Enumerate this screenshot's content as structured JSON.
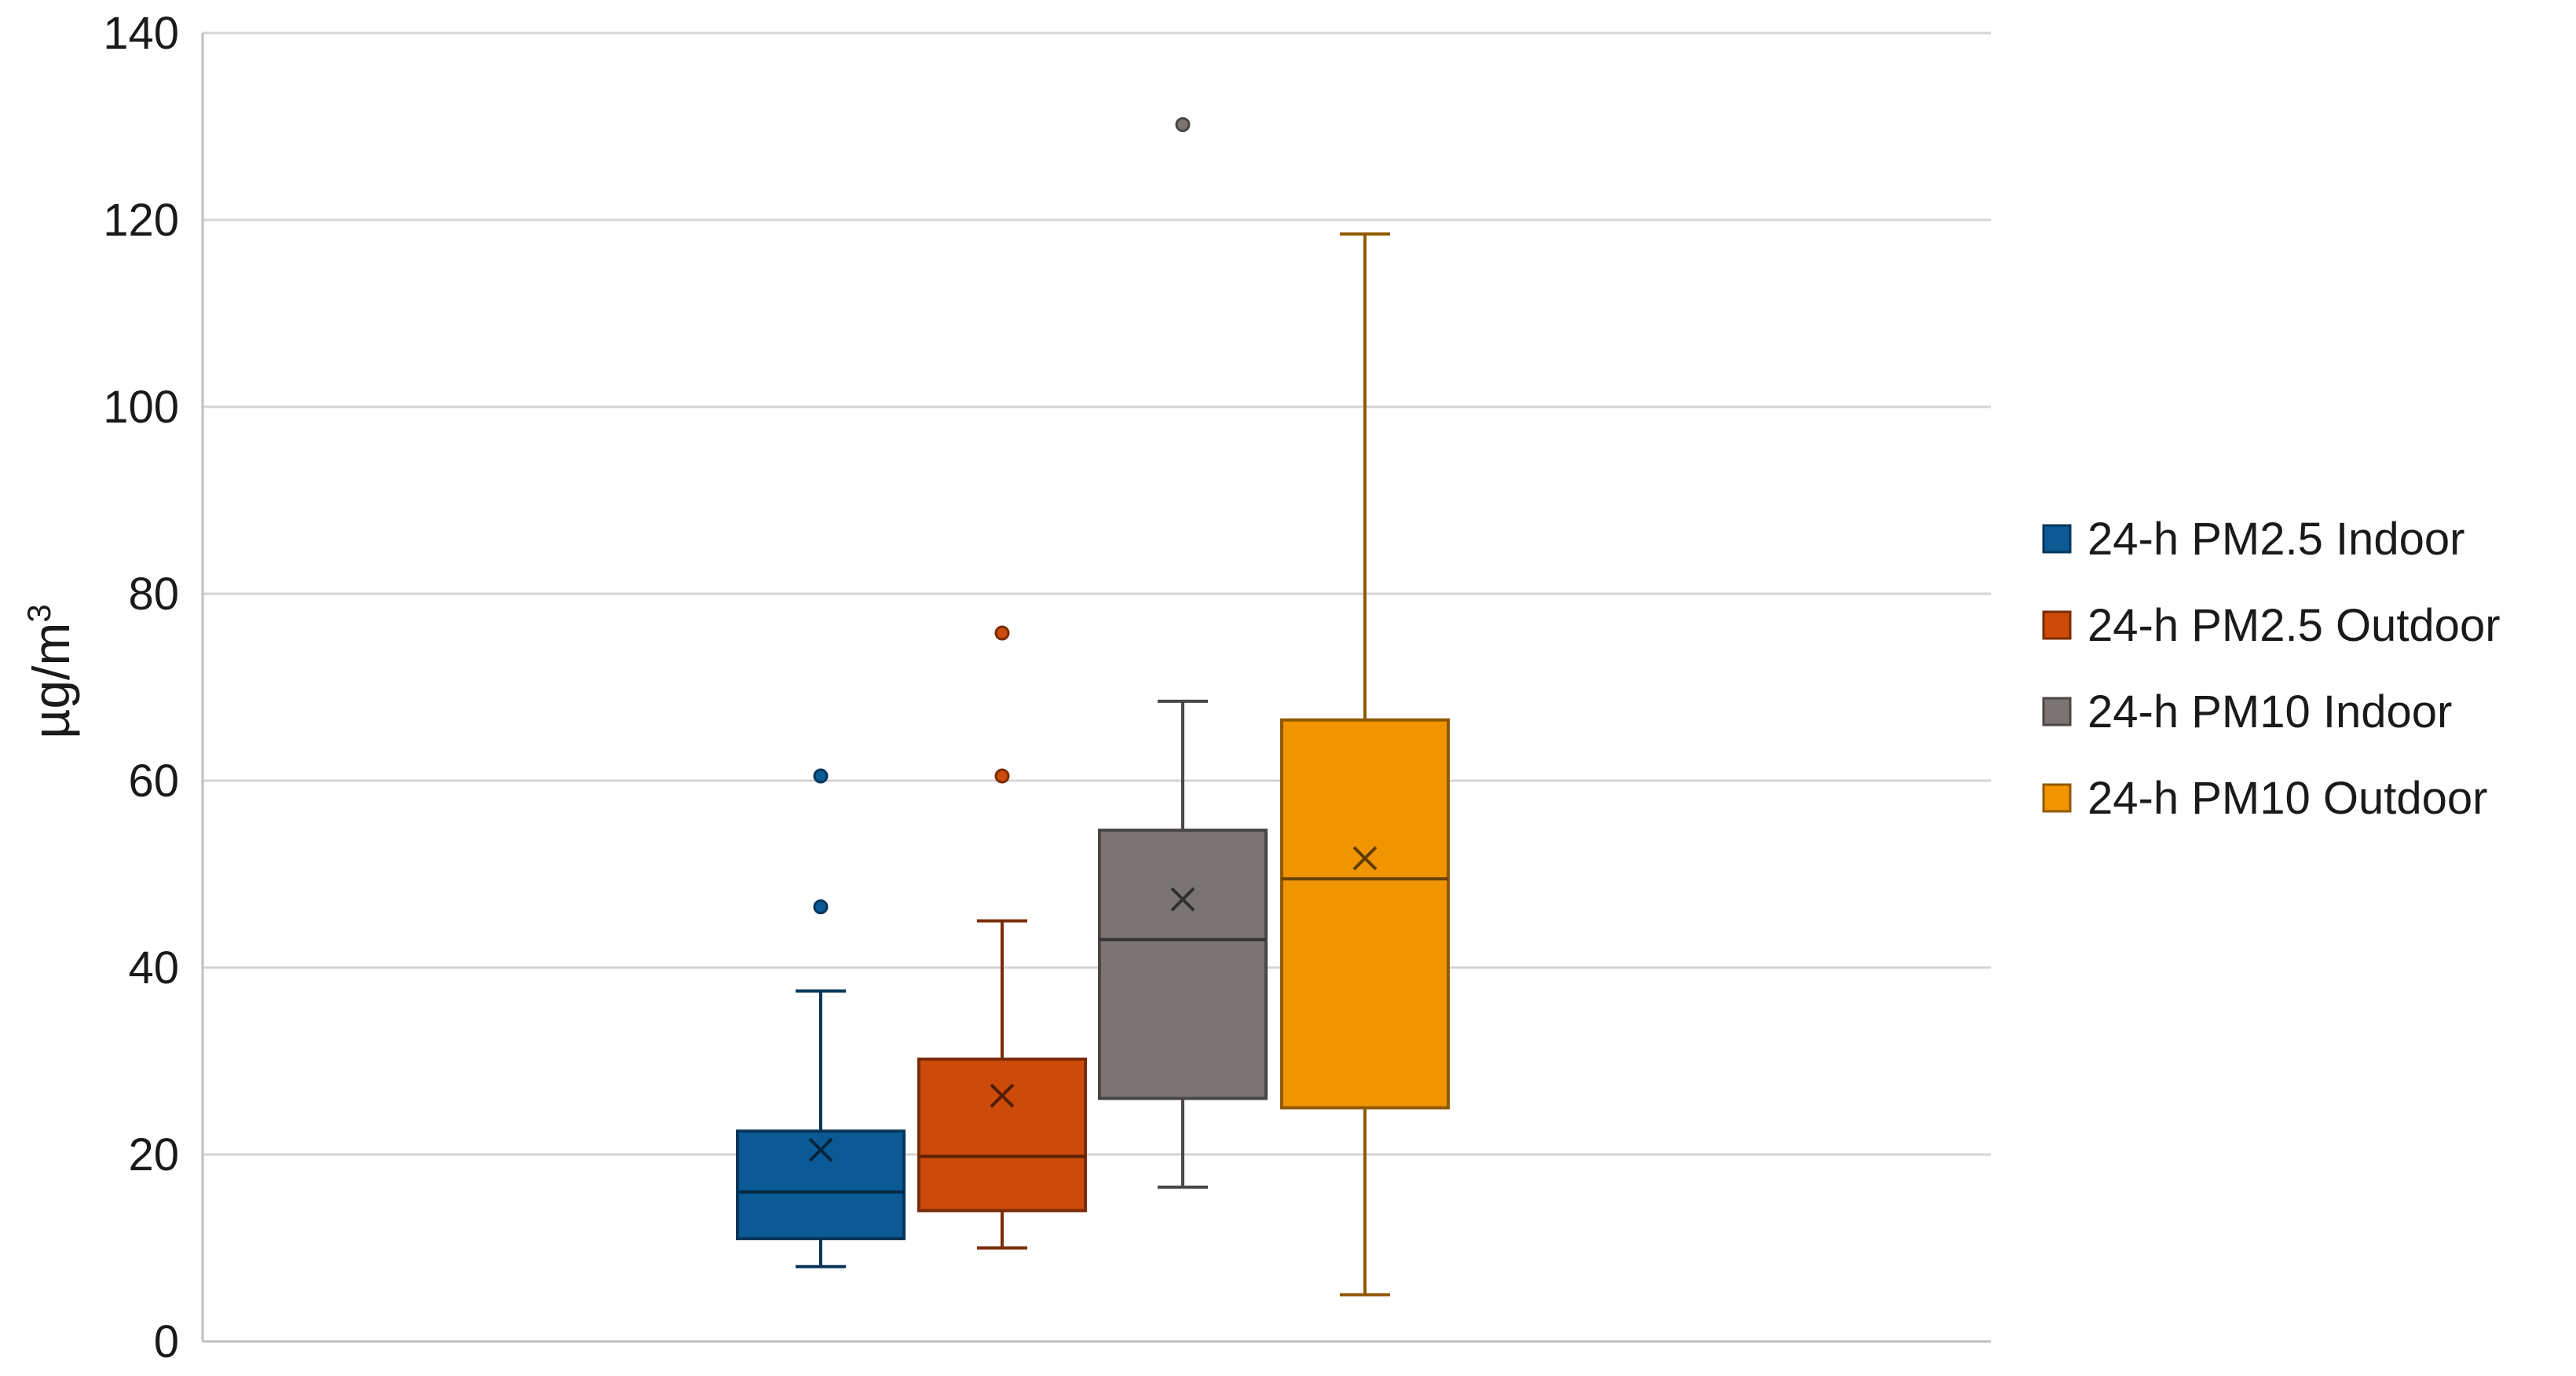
{
  "chart_data": {
    "type": "box",
    "ylabel": "µg/m",
    "ylabel_superscript": "3",
    "ylim": [
      0,
      140
    ],
    "yticks": [
      0,
      20,
      40,
      60,
      80,
      100,
      120,
      140
    ],
    "grid": true,
    "legend_position": "right",
    "series": [
      {
        "name": "24-h PM2.5 Indoor",
        "color": "#0b5a96",
        "whisker_low": 8,
        "q1": 11,
        "median": 16,
        "q3": 22.5,
        "whisker_high": 37.5,
        "mean": 20.5,
        "outliers": [
          46.5,
          60.5
        ]
      },
      {
        "name": "24-h PM2.5 Outdoor",
        "color": "#cc4a0a",
        "whisker_low": 10,
        "q1": 14,
        "median": 19.8,
        "q3": 30.2,
        "whisker_high": 45,
        "mean": 26.3,
        "outliers": [
          60.5,
          75.8
        ]
      },
      {
        "name": "24-h PM10 Indoor",
        "color": "#7a7573",
        "whisker_low": 16.5,
        "q1": 26,
        "median": 43,
        "q3": 54.7,
        "whisker_high": 68.5,
        "mean": 47.3,
        "outliers": [
          130.2
        ]
      },
      {
        "name": "24-h PM10 Outdoor",
        "color": "#f09400",
        "whisker_low": 5,
        "q1": 25,
        "median": 49.5,
        "q3": 66.5,
        "whisker_high": 118.5,
        "mean": 51.7,
        "outliers": []
      }
    ]
  }
}
